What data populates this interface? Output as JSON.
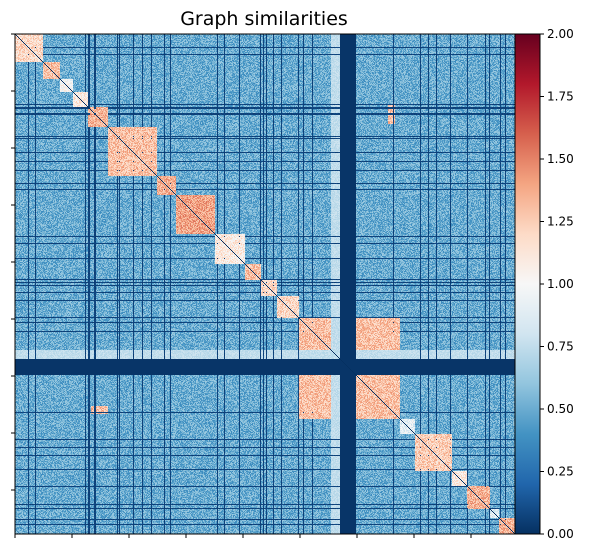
{
  "chart_data": {
    "type": "heatmap",
    "title": "Graph similarities",
    "xlabel": "",
    "ylabel": "",
    "n": 500,
    "colormap": "RdBu_r",
    "vmin": 0.0,
    "vmax": 2.0,
    "colorbar_ticks": [
      "0.00",
      "0.25",
      "0.50",
      "0.75",
      "1.00",
      "1.25",
      "1.50",
      "1.75",
      "2.00"
    ],
    "colorbar_tick_values": [
      0.0,
      0.25,
      0.5,
      0.75,
      1.0,
      1.25,
      1.5,
      1.75,
      2.0
    ],
    "x_tick_values": [
      0,
      57,
      114,
      171,
      228,
      285,
      342,
      399,
      456
    ],
    "y_tick_values": [
      0,
      57,
      114,
      171,
      228,
      285,
      342,
      399,
      456
    ],
    "background_value": 0.5,
    "diagonal_value": 0.0,
    "diagonal_blocks": [
      {
        "start": 0,
        "end": 28,
        "value": 1.2
      },
      {
        "start": 28,
        "end": 45,
        "value": 1.3
      },
      {
        "start": 45,
        "end": 58,
        "value": 1.0
      },
      {
        "start": 58,
        "end": 73,
        "value": 1.1
      },
      {
        "start": 73,
        "end": 93,
        "value": 1.35
      },
      {
        "start": 93,
        "end": 142,
        "value": 1.3
      },
      {
        "start": 142,
        "end": 161,
        "value": 1.35
      },
      {
        "start": 161,
        "end": 200,
        "value": 1.4
      },
      {
        "start": 200,
        "end": 230,
        "value": 1.1
      },
      {
        "start": 230,
        "end": 246,
        "value": 1.3
      },
      {
        "start": 246,
        "end": 262,
        "value": 1.2
      },
      {
        "start": 262,
        "end": 284,
        "value": 1.2
      },
      {
        "start": 284,
        "end": 385,
        "value": 1.3
      },
      {
        "start": 385,
        "end": 400,
        "value": 0.9
      },
      {
        "start": 400,
        "end": 437,
        "value": 1.25
      },
      {
        "start": 437,
        "end": 452,
        "value": 1.1
      },
      {
        "start": 452,
        "end": 475,
        "value": 1.35
      },
      {
        "start": 475,
        "end": 484,
        "value": 0.9
      },
      {
        "start": 484,
        "end": 500,
        "value": 1.35
      }
    ],
    "low_lines": [
      13,
      20,
      70,
      73,
      74,
      79,
      80,
      102,
      104,
      118,
      127,
      136,
      149,
      155,
      202,
      209,
      224,
      245,
      248,
      251,
      258,
      266,
      283,
      288,
      297,
      325,
      326,
      327,
      328,
      329,
      330,
      331,
      332,
      333,
      334,
      335,
      336,
      337,
      338,
      339,
      340,
      378,
      405,
      413,
      421,
      435,
      452,
      470,
      474,
      485,
      490
    ],
    "dark_bands": [
      {
        "start": 325,
        "end": 341,
        "value": 0.02
      }
    ],
    "light_bands": [
      {
        "start": 316,
        "end": 325,
        "value": 0.75
      }
    ],
    "offdiag_patches": [
      {
        "rows": [
          70,
          90
        ],
        "cols": [
          373,
          380
        ],
        "value": 1.3
      },
      {
        "rows": [
          372,
          380
        ],
        "cols": [
          76,
          93
        ],
        "value": 1.3
      },
      {
        "rows": [
          284,
          320
        ],
        "cols": [
          341,
          385
        ],
        "value": 1.3
      },
      {
        "rows": [
          341,
          385
        ],
        "cols": [
          284,
          320
        ],
        "value": 1.3
      }
    ]
  }
}
